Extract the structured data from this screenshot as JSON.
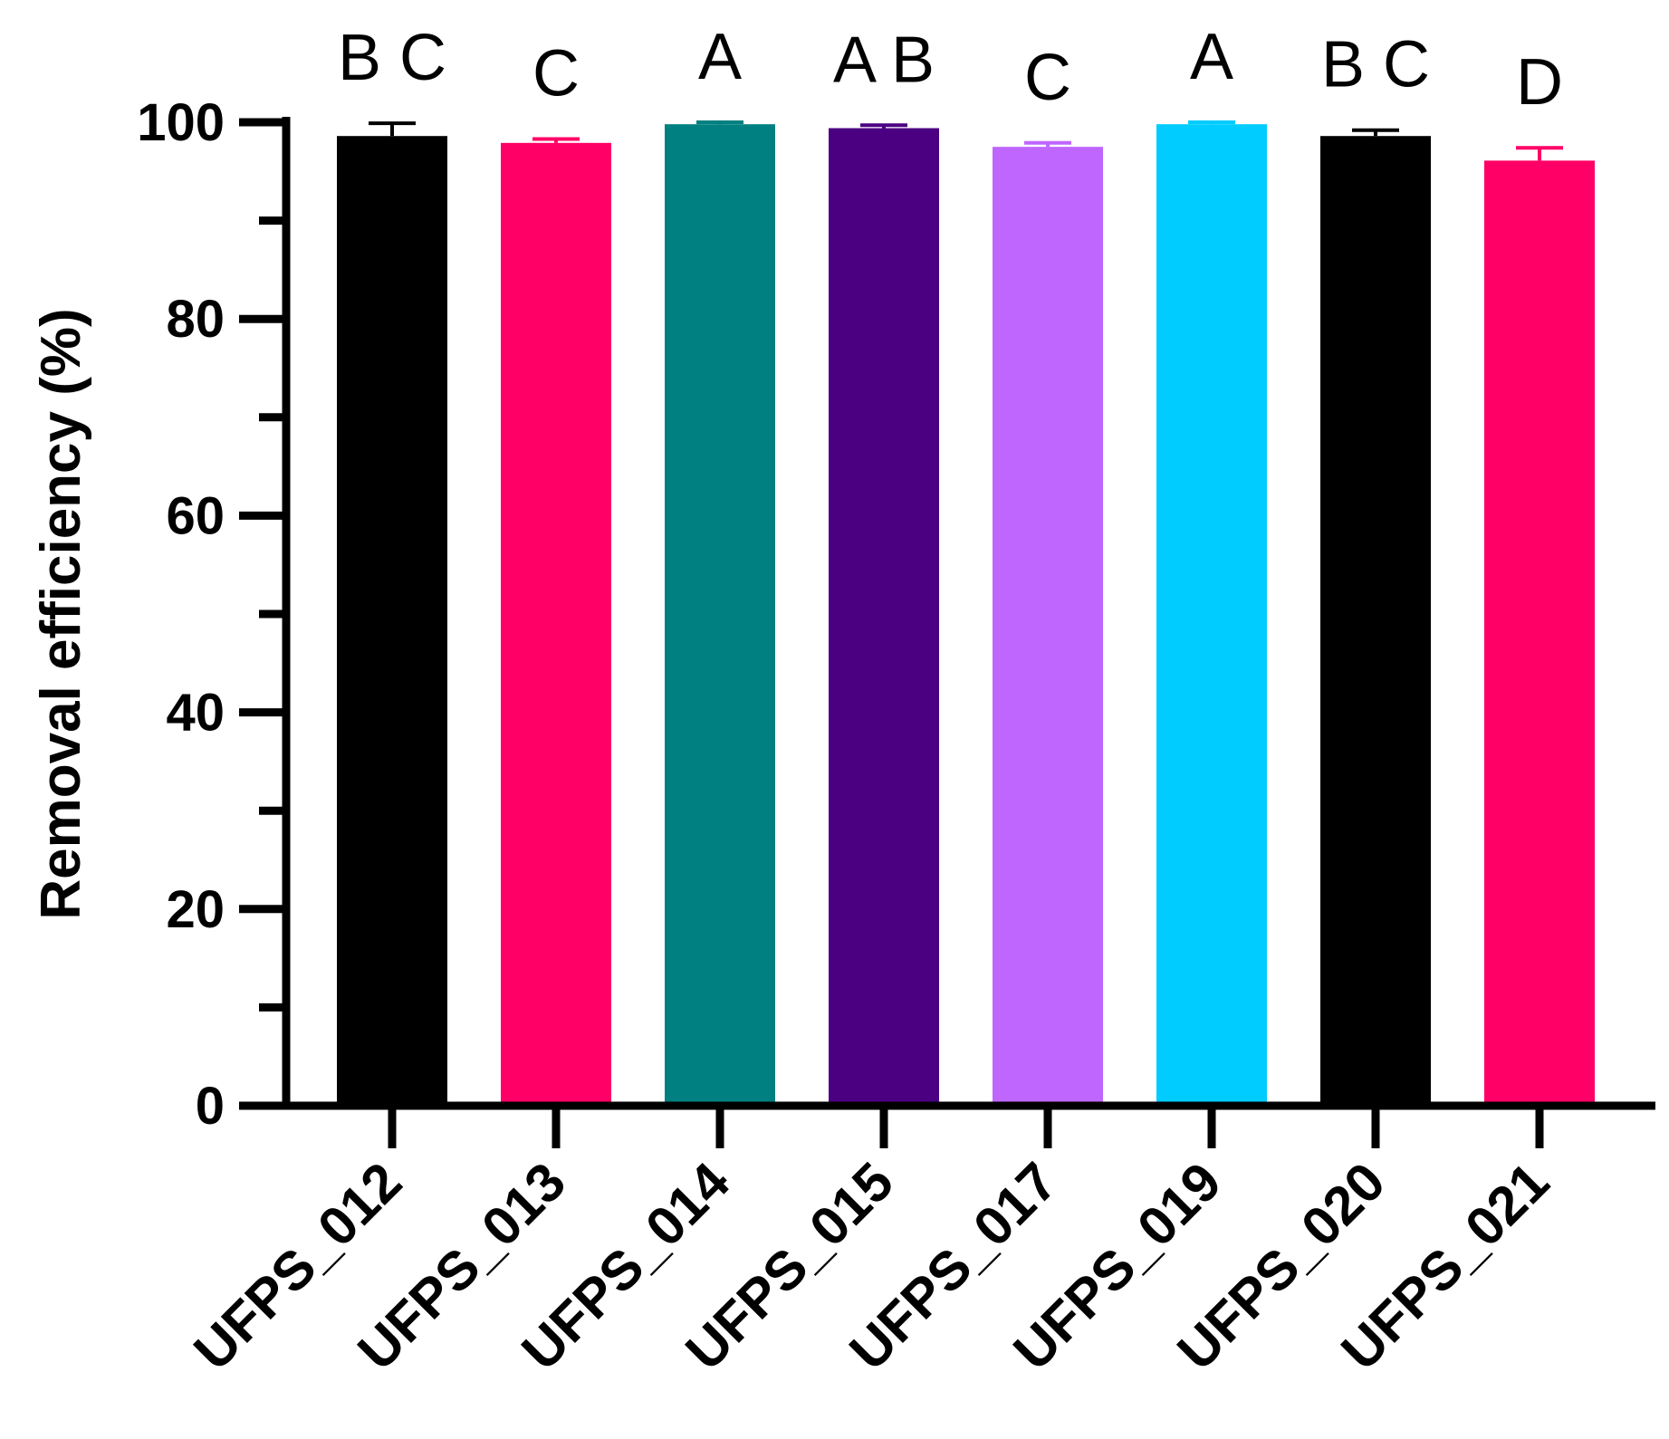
{
  "chart_data": {
    "type": "bar",
    "title": "",
    "xlabel": "",
    "ylabel": "Removal efficiency (%)",
    "ylim": [
      0,
      100
    ],
    "yticks": [
      0,
      20,
      40,
      60,
      80,
      100
    ],
    "minor_tick_step": 10,
    "grid": false,
    "legend": "none",
    "categories": [
      "UFPS_012",
      "UFPS_013",
      "UFPS_014",
      "UFPS_015",
      "UFPS_017",
      "UFPS_019",
      "UFPS_020",
      "UFPS_021"
    ],
    "values": [
      98.6,
      97.9,
      99.8,
      99.4,
      97.5,
      99.8,
      98.6,
      96.1
    ],
    "errors": [
      1.3,
      0.4,
      0.2,
      0.3,
      0.4,
      0.2,
      0.6,
      1.3
    ],
    "significance_letters": [
      "B C",
      "C",
      "A",
      "A B",
      "C",
      "A",
      "B C",
      "D"
    ],
    "colors": [
      "#000000",
      "#ff0066",
      "#008080",
      "#4b0082",
      "#bf66ff",
      "#00ccff",
      "#000000",
      "#ff0066"
    ]
  }
}
